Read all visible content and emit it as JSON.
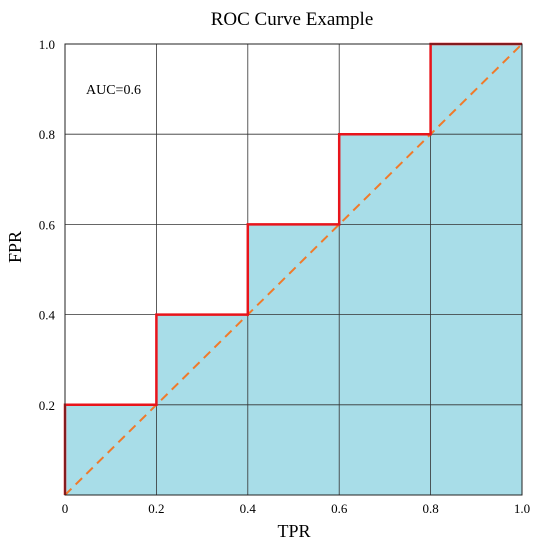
{
  "chart_data": {
    "type": "line",
    "title": "ROC Curve Example",
    "xlabel": "TPR",
    "ylabel": "FPR",
    "xlim": [
      0,
      1
    ],
    "ylim": [
      0,
      1
    ],
    "grid": true,
    "x_ticks": [
      "0",
      "0.2",
      "0.4",
      "0.6",
      "0.8",
      "1.0"
    ],
    "y_ticks": [
      "0.2",
      "0.4",
      "0.6",
      "0.8",
      "1.0"
    ],
    "annotation": "AUC=0.6",
    "series": [
      {
        "role": "roc-step-curve",
        "style": "solid",
        "color": "#e8141b",
        "fill": "#a8dde8",
        "points": [
          [
            0,
            0
          ],
          [
            0,
            0.2
          ],
          [
            0.2,
            0.2
          ],
          [
            0.2,
            0.4
          ],
          [
            0.4,
            0.4
          ],
          [
            0.4,
            0.6
          ],
          [
            0.6,
            0.6
          ],
          [
            0.6,
            0.8
          ],
          [
            0.8,
            0.8
          ],
          [
            0.8,
            1.0
          ],
          [
            1.0,
            1.0
          ]
        ]
      },
      {
        "role": "chance-diagonal",
        "style": "dashed",
        "color": "#f07a2a",
        "points": [
          [
            0,
            0
          ],
          [
            1.0,
            1.0
          ]
        ]
      }
    ]
  }
}
